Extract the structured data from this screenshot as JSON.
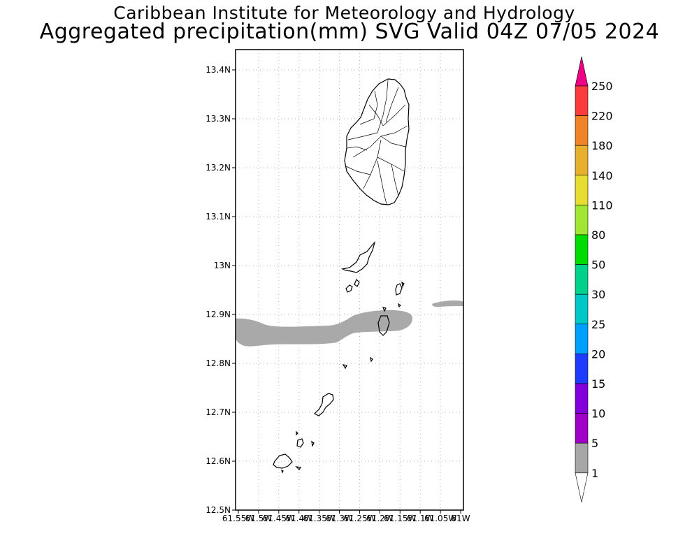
{
  "header": {
    "title": "Caribbean Institute for Meteorology and Hydrology",
    "subtitle": "Aggregated precipitation(mm) SVG Valid 04Z 07/05 2024"
  },
  "map": {
    "lat_ticks": [
      "13.4N",
      "13.3N",
      "13.2N",
      "13.1N",
      "13N",
      "12.9N",
      "12.8N",
      "12.7N",
      "12.6N",
      "12.5N"
    ],
    "lon_ticks": [
      "61.55W",
      "61.5W",
      "61.45W",
      "61.4W",
      "61.35W",
      "61.3W",
      "61.25W",
      "61.2W",
      "61.15W",
      "61.1W",
      "61.05W",
      "61W"
    ],
    "lat_range": [
      12.5,
      13.44
    ],
    "lon_range": [
      -61.55,
      -61.0
    ],
    "grid": true,
    "precip_color": "#a9a9a9",
    "precip_class": "1-5"
  },
  "legend": {
    "labels": [
      "1",
      "5",
      "10",
      "15",
      "20",
      "25",
      "30",
      "50",
      "80",
      "110",
      "140",
      "180",
      "220",
      "250"
    ],
    "colors": [
      "#a6a6a6",
      "#a000c8",
      "#8200dc",
      "#1e3cff",
      "#00a0ff",
      "#00c8c8",
      "#00d28c",
      "#00dc00",
      "#a0e632",
      "#e6dc32",
      "#e6af2d",
      "#f08228",
      "#fa3c3c",
      "#f00082"
    ],
    "upper_arrow_color": "#f00082",
    "lower_arrow_color": "#ffffff"
  }
}
